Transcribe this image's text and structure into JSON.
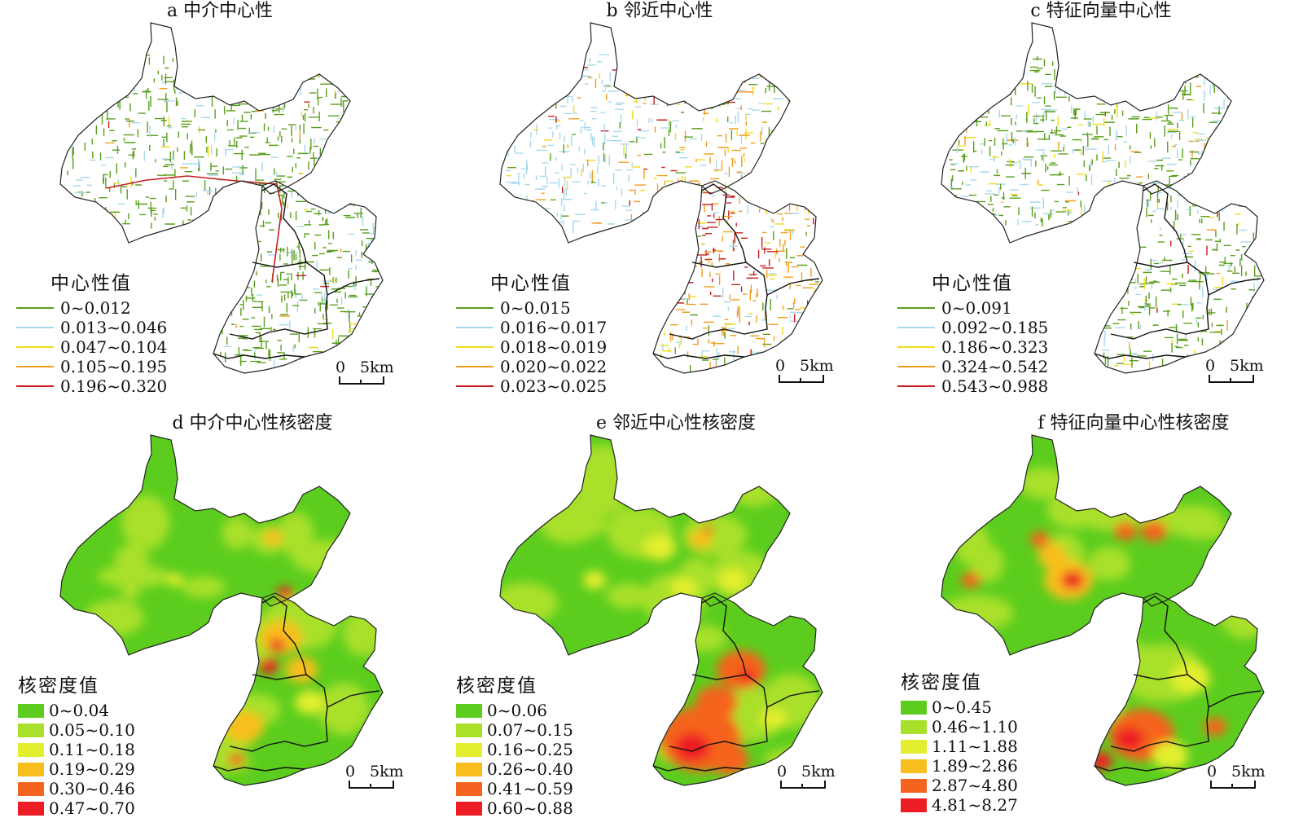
{
  "panels": [
    {
      "title": "a 中介中心性",
      "legend_title": "中心性值",
      "legend_type": "line",
      "legend": [
        {
          "label": "0~0.012",
          "color": "#5a9e1c"
        },
        {
          "label": "0.013~0.046",
          "color": "#a7d8ec"
        },
        {
          "label": "0.047~0.104",
          "color": "#f2dc1e"
        },
        {
          "label": "0.105~0.195",
          "color": "#f29d1e"
        },
        {
          "label": "0.196~0.320",
          "color": "#c71e1e"
        }
      ],
      "scale_zero": "0",
      "scale_label": "5km"
    },
    {
      "title": "b 邻近中心性",
      "legend_title": "中心性值",
      "legend_type": "line",
      "legend": [
        {
          "label": "0~0.015",
          "color": "#5a9e1c"
        },
        {
          "label": "0.016~0.017",
          "color": "#a7d8ec"
        },
        {
          "label": "0.018~0.019",
          "color": "#f2dc1e"
        },
        {
          "label": "0.020~0.022",
          "color": "#f29d1e"
        },
        {
          "label": "0.023~0.025",
          "color": "#c71e1e"
        }
      ],
      "scale_zero": "0",
      "scale_label": "5km"
    },
    {
      "title": "c 特征向量中心性",
      "legend_title": "中心性值",
      "legend_type": "line",
      "legend": [
        {
          "label": "0~0.091",
          "color": "#5a9e1c"
        },
        {
          "label": "0.092~0.185",
          "color": "#a7d8ec"
        },
        {
          "label": "0.186~0.323",
          "color": "#f2dc1e"
        },
        {
          "label": "0.324~0.542",
          "color": "#f29d1e"
        },
        {
          "label": "0.543~0.988",
          "color": "#c71e1e"
        }
      ],
      "scale_zero": "0",
      "scale_label": "5km"
    },
    {
      "title": "d 中介中心性核密度",
      "legend_title": "核密度值",
      "legend_type": "fill",
      "legend": [
        {
          "label": "0~0.04",
          "color": "#5ccd1e"
        },
        {
          "label": "0.05~0.10",
          "color": "#a8e02a"
        },
        {
          "label": "0.11~0.18",
          "color": "#e3ee2e"
        },
        {
          "label": "0.19~0.29",
          "color": "#f8be1e"
        },
        {
          "label": "0.30~0.46",
          "color": "#f5641e"
        },
        {
          "label": "0.47~0.70",
          "color": "#ee1c24"
        }
      ],
      "scale_zero": "0",
      "scale_label": "5km"
    },
    {
      "title": "e 邻近中心性核密度",
      "legend_title": "核密度值",
      "legend_type": "fill",
      "legend": [
        {
          "label": "0~0.06",
          "color": "#5ccd1e"
        },
        {
          "label": "0.07~0.15",
          "color": "#a8e02a"
        },
        {
          "label": "0.16~0.25",
          "color": "#e3ee2e"
        },
        {
          "label": "0.26~0.40",
          "color": "#f8be1e"
        },
        {
          "label": "0.41~0.59",
          "color": "#f5641e"
        },
        {
          "label": "0.60~0.88",
          "color": "#ee1c24"
        }
      ],
      "scale_zero": "0",
      "scale_label": "5km"
    },
    {
      "title": "f 特征向量中心性核密度",
      "legend_title": "核密度值",
      "legend_type": "fill",
      "legend": [
        {
          "label": "0~0.45",
          "color": "#5ccd1e"
        },
        {
          "label": "0.46~1.10",
          "color": "#a8e02a"
        },
        {
          "label": "1.11~1.88",
          "color": "#e3ee2e"
        },
        {
          "label": "1.89~2.86",
          "color": "#f8be1e"
        },
        {
          "label": "2.87~4.80",
          "color": "#f5641e"
        },
        {
          "label": "4.81~8.27",
          "color": "#ee1c24"
        }
      ],
      "scale_zero": "0",
      "scale_label": "5km"
    }
  ]
}
